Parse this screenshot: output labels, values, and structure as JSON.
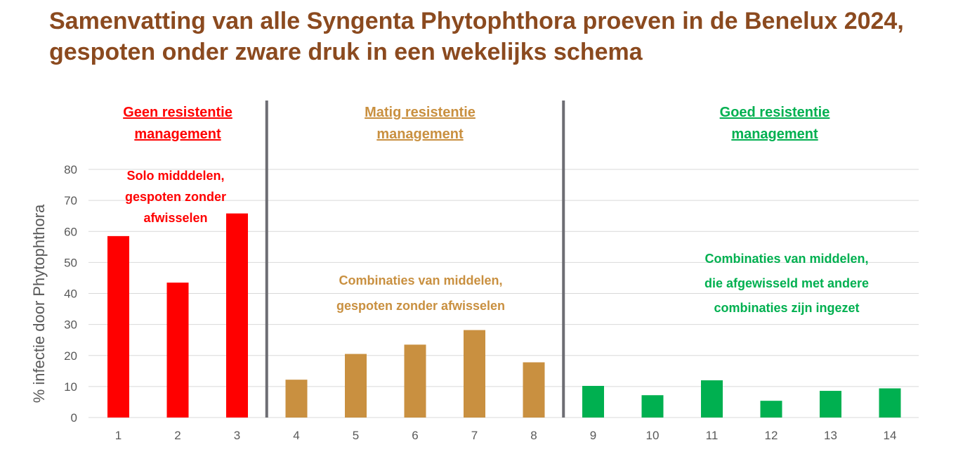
{
  "title_lines": [
    "Samenvatting van alle Syngenta Phytophthora proeven in de Benelux 2024,",
    "gespoten onder zware druk in een wekelijks schema"
  ],
  "colors": {
    "title": "#8b4a1f",
    "red": "#ff0000",
    "tan": "#c99040",
    "green": "#00b050",
    "separator": "#6d6d73",
    "grid": "#d9d9d9"
  },
  "chart_data": {
    "type": "bar",
    "categories": [
      "1",
      "2",
      "3",
      "4",
      "5",
      "6",
      "7",
      "8",
      "9",
      "10",
      "11",
      "12",
      "13",
      "14"
    ],
    "values": [
      58.5,
      43.5,
      65.8,
      12.2,
      20.5,
      23.5,
      28.2,
      17.8,
      10.2,
      7.2,
      12.0,
      5.4,
      8.6,
      9.4
    ],
    "bar_groups": [
      "red",
      "red",
      "red",
      "tan",
      "tan",
      "tan",
      "tan",
      "tan",
      "green",
      "green",
      "green",
      "green",
      "green",
      "green"
    ],
    "ylabel": "% infectie door Phytophthora",
    "ylim": [
      0,
      80
    ],
    "yticks": [
      0,
      10,
      20,
      30,
      40,
      50,
      60,
      70,
      80
    ],
    "grid": true,
    "separators_after_category": [
      3,
      8
    ],
    "sections": [
      {
        "heading": [
          "Geen resistentie",
          "management"
        ],
        "note": [
          "Solo midddelen,",
          "gespoten zonder",
          "afwisselen"
        ],
        "color": "red"
      },
      {
        "heading": [
          "Matig resistentie",
          "management"
        ],
        "note": [
          "Combinaties van middelen,",
          "gespoten zonder afwisselen"
        ],
        "color": "tan"
      },
      {
        "heading": [
          "Goed resistentie",
          "management"
        ],
        "note": [
          "Combinaties van middelen,",
          "die afgewisseld met andere",
          "combinaties zijn ingezet"
        ],
        "color": "green"
      }
    ]
  }
}
